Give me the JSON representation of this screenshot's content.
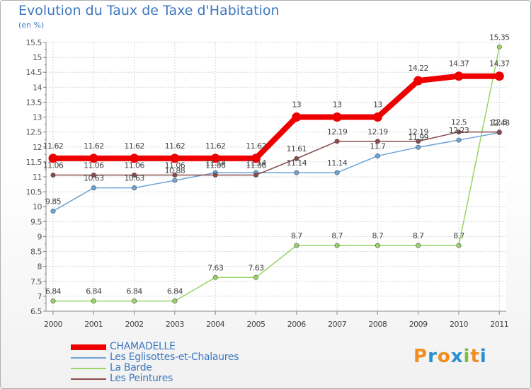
{
  "title": "Evolution du Taux de Taxe d'Habitation",
  "subtitle": "(en %)",
  "brand": "Proxiti",
  "brand_colors": [
    "#f28c1e",
    "#2a8fd1",
    "#f28c1e",
    "#2a8fd1",
    "#7cc142",
    "#f28c1e",
    "#2a8fd1"
  ],
  "chart_data": {
    "type": "line",
    "x": [
      "2000",
      "2001",
      "2002",
      "2003",
      "2004",
      "2005",
      "2006",
      "2007",
      "2008",
      "2009",
      "2010",
      "2011"
    ],
    "ylim": [
      6.5,
      15.5
    ],
    "yticks": [
      "6.5",
      "7",
      "7.5",
      "8",
      "8.5",
      "9",
      "9.5",
      "10",
      "10.5",
      "11",
      "11.5",
      "12",
      "12.5",
      "13",
      "13.5",
      "14",
      "14.5",
      "15",
      "15.5"
    ],
    "grid": true,
    "legend_position": "bottom-left",
    "series": [
      {
        "name": "CHAMADELLE",
        "color": "#ee0000",
        "emphasis": true,
        "values": [
          11.62,
          11.62,
          11.62,
          11.62,
          11.62,
          11.62,
          13,
          13,
          13,
          14.22,
          14.37,
          14.37
        ],
        "labels": [
          "11.62",
          "11.62",
          "11.62",
          "11.62",
          "11.62",
          "11.62",
          "13",
          "13",
          "13",
          "14.22",
          "14.37",
          "14.37"
        ]
      },
      {
        "name": "Les Eglisottes-et-Chalaures",
        "color": "#6ba3d6",
        "values": [
          9.85,
          10.63,
          10.63,
          10.88,
          11.14,
          11.14,
          11.14,
          11.14,
          11.7,
          11.99,
          12.23,
          12.48
        ],
        "labels": [
          "9.85",
          "10.63",
          "10.63",
          "10.88",
          "11.14",
          "11.14",
          "11.14",
          "11.14",
          "11.7",
          "11.99",
          "12.23",
          "12.48"
        ]
      },
      {
        "name": "La Barde",
        "color": "#99d466",
        "values": [
          6.84,
          6.84,
          6.84,
          6.84,
          7.63,
          7.63,
          8.7,
          8.7,
          8.7,
          8.7,
          8.7,
          15.35
        ],
        "labels": [
          "6.84",
          "6.84",
          "6.84",
          "6.84",
          "7.63",
          "7.63",
          "8.7",
          "8.7",
          "8.7",
          "8.7",
          "8.7",
          "15.35"
        ]
      },
      {
        "name": "Les Peintures",
        "color": "#8a4a4a",
        "values": [
          11.06,
          11.06,
          11.06,
          11.06,
          11.06,
          11.06,
          11.61,
          12.19,
          12.19,
          12.19,
          12.5,
          12.5
        ],
        "labels": [
          "11.06",
          "11.06",
          "11.06",
          "11.06",
          "11.06",
          "11.06",
          "11.61",
          "12.19",
          "12.19",
          "12.19",
          "12.5",
          "12.5"
        ]
      }
    ]
  }
}
